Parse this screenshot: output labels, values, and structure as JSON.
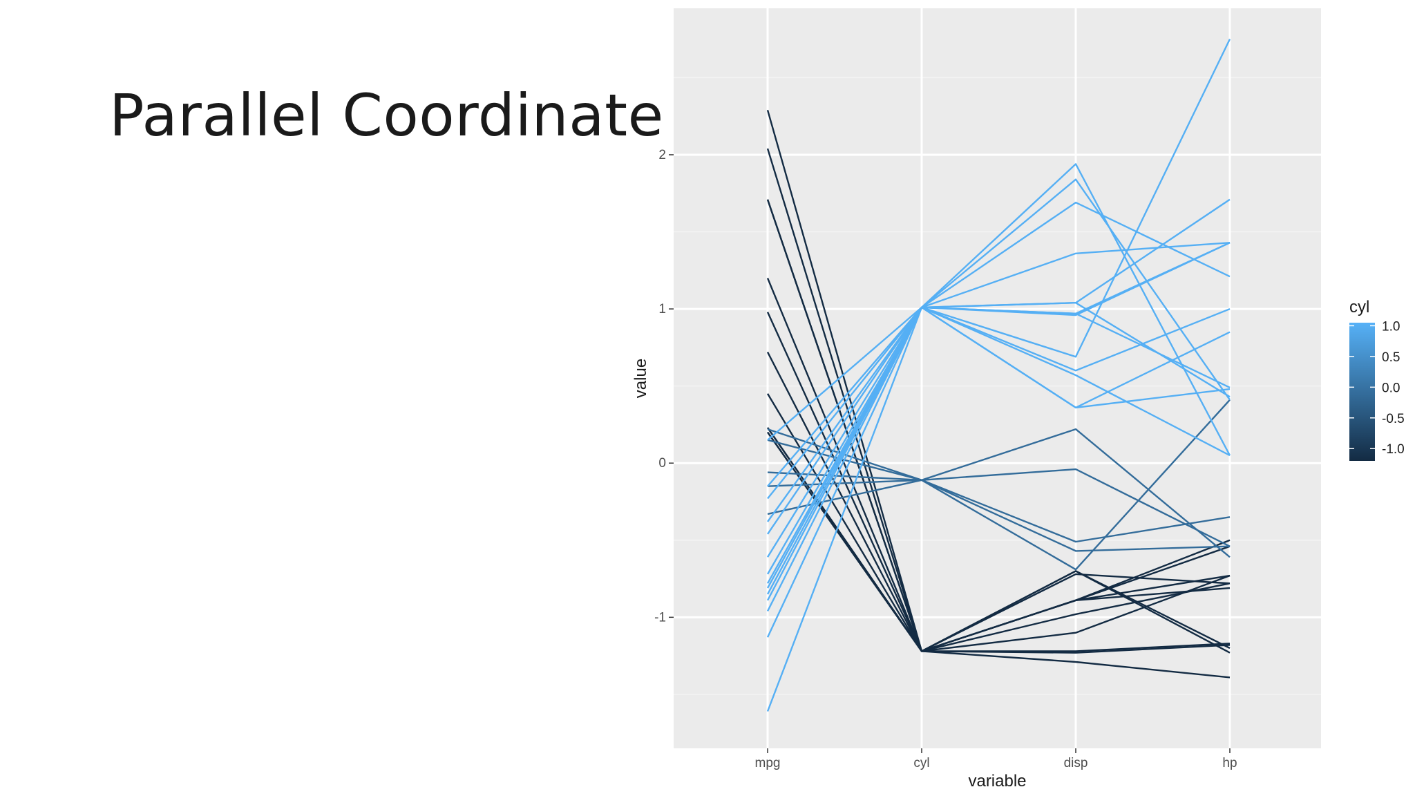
{
  "slide": {
    "title": "Parallel Coordinate"
  },
  "chart_data": {
    "type": "line",
    "subtype": "parallel-coordinates",
    "x_categories": [
      "mpg",
      "cyl",
      "disp",
      "hp"
    ],
    "xlabel": "variable",
    "ylabel": "value",
    "ylim": [
      -1.85,
      2.95
    ],
    "yticks": [
      -1,
      0,
      1,
      2
    ],
    "grid": true,
    "legend": {
      "title": "cyl",
      "position": "right",
      "type": "colorbar",
      "ticks": [
        "1.0",
        "0.5",
        "0.0",
        "-0.5",
        "-1.0"
      ],
      "tick_values": [
        1.0,
        0.5,
        0.0,
        -0.5,
        -1.0
      ],
      "range": [
        -1.2,
        1.05
      ]
    },
    "colors": {
      "low": "#132b43",
      "high": "#56b1f7",
      "panel_background": "#ebebeb",
      "grid_major": "#ffffff",
      "grid_minor": "#f4f4f4"
    },
    "series": [
      {
        "cyl": 1.01,
        "values": [
          -1.61,
          1.01,
          1.94,
          0.05
        ]
      },
      {
        "cyl": 1.01,
        "values": [
          -1.13,
          1.01,
          1.84,
          0.41
        ]
      },
      {
        "cyl": 1.01,
        "values": [
          -0.96,
          1.01,
          1.69,
          1.21
        ]
      },
      {
        "cyl": 1.01,
        "values": [
          -0.89,
          1.01,
          1.36,
          1.43
        ]
      },
      {
        "cyl": 1.01,
        "values": [
          -0.85,
          1.01,
          1.04,
          1.71
        ]
      },
      {
        "cyl": 1.01,
        "values": [
          -0.81,
          1.01,
          0.97,
          1.43
        ]
      },
      {
        "cyl": 1.01,
        "values": [
          -0.78,
          1.01,
          0.96,
          1.43
        ]
      },
      {
        "cyl": 1.01,
        "values": [
          -0.72,
          1.01,
          0.69,
          2.75
        ]
      },
      {
        "cyl": 1.01,
        "values": [
          -0.61,
          1.01,
          0.6,
          1.0
        ]
      },
      {
        "cyl": 1.01,
        "values": [
          -0.46,
          1.01,
          0.57,
          0.05
        ]
      },
      {
        "cyl": 1.01,
        "values": [
          -0.38,
          1.01,
          0.36,
          0.48
        ]
      },
      {
        "cyl": 1.01,
        "values": [
          -0.23,
          1.01,
          0.36,
          0.85
        ]
      },
      {
        "cyl": 1.01,
        "values": [
          -0.15,
          1.01,
          1.04,
          0.43
        ]
      },
      {
        "cyl": 1.01,
        "values": [
          0.15,
          1.01,
          0.97,
          0.49
        ]
      },
      {
        "cyl": -0.11,
        "values": [
          -0.33,
          -0.11,
          0.22,
          -0.61
        ]
      },
      {
        "cyl": -0.11,
        "values": [
          -0.15,
          -0.11,
          -0.04,
          -0.54
        ]
      },
      {
        "cyl": -0.11,
        "values": [
          -0.06,
          -0.11,
          -0.51,
          -0.35
        ]
      },
      {
        "cyl": -0.11,
        "values": [
          0.15,
          -0.11,
          -0.57,
          -0.54
        ]
      },
      {
        "cyl": -0.11,
        "values": [
          0.22,
          -0.11,
          -0.69,
          0.41
        ]
      },
      {
        "cyl": -1.22,
        "values": [
          2.29,
          -1.22,
          -1.23,
          -1.18
        ]
      },
      {
        "cyl": -1.22,
        "values": [
          2.04,
          -1.22,
          -1.29,
          -1.39
        ]
      },
      {
        "cyl": -1.22,
        "values": [
          1.71,
          -1.22,
          -1.1,
          -0.73
        ]
      },
      {
        "cyl": -1.22,
        "values": [
          1.71,
          -1.22,
          -1.22,
          -1.17
        ]
      },
      {
        "cyl": -1.22,
        "values": [
          1.2,
          -1.22,
          -0.89,
          -0.5
        ]
      },
      {
        "cyl": -1.22,
        "values": [
          0.98,
          -1.22,
          -0.98,
          -0.78
        ]
      },
      {
        "cyl": -1.22,
        "values": [
          0.72,
          -1.22,
          -0.89,
          -0.73
        ]
      },
      {
        "cyl": -1.22,
        "values": [
          0.45,
          -1.22,
          -0.7,
          -1.2
        ]
      },
      {
        "cyl": -1.22,
        "values": [
          0.23,
          -1.22,
          -0.89,
          -0.54
        ]
      },
      {
        "cyl": -1.22,
        "values": [
          0.23,
          -1.22,
          -0.72,
          -0.78
        ]
      },
      {
        "cyl": -1.22,
        "values": [
          0.2,
          -1.22,
          -0.7,
          -1.23
        ]
      },
      {
        "cyl": -1.22,
        "values": [
          0.2,
          -1.22,
          -0.89,
          -0.81
        ]
      }
    ]
  }
}
